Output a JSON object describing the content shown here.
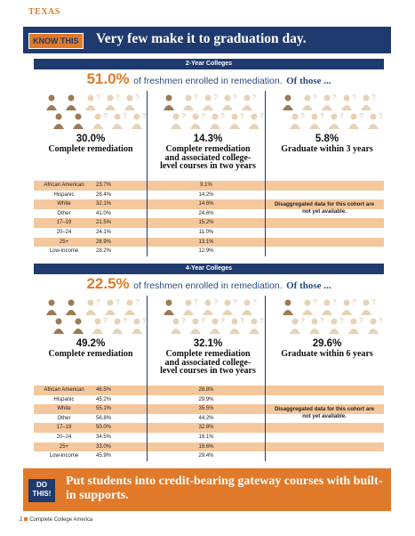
{
  "state": "TEXAS",
  "banner": {
    "label": "KNOW THIS",
    "title": "Very few make it to graduation day."
  },
  "sections": [
    {
      "header": "2-Year Colleges",
      "headline": {
        "percent": "51.0%",
        "text": "of freshmen enrolled in remediation.",
        "emphasis": "Of those ..."
      },
      "columns": [
        {
          "percent": "30.0%",
          "label": "Complete remediation"
        },
        {
          "percent": "14.3%",
          "label": "Complete remediation and associated college-level courses in two years"
        },
        {
          "percent": "5.8%",
          "label": "Graduate within 3 years"
        }
      ],
      "rows": [
        [
          "African American",
          "23.7%",
          "9.1%"
        ],
        [
          "Hispanic",
          "28.4%",
          "14.2%"
        ],
        [
          "White",
          "32.1%",
          "14.6%"
        ],
        [
          "Other",
          "41.0%",
          "24.6%"
        ],
        [
          "17–19",
          "21.5%",
          "15.2%"
        ],
        [
          "20–24",
          "24.1%",
          "11.0%"
        ],
        [
          "25+",
          "28.9%",
          "13.1%"
        ],
        [
          "Low-income",
          "28.2%",
          "12.9%"
        ]
      ],
      "note": "Disaggregated data for this cohort are not yet available."
    },
    {
      "header": "4-Year Colleges",
      "headline": {
        "percent": "22.5%",
        "text": "of freshmen enrolled in remediation.",
        "emphasis": "Of those ..."
      },
      "columns": [
        {
          "percent": "49.2%",
          "label": "Complete remediation"
        },
        {
          "percent": "32.1%",
          "label": "Complete remediation and associated college-level courses in two years"
        },
        {
          "percent": "29.6%",
          "label": "Graduate within 6 years"
        }
      ],
      "rows": [
        [
          "African American",
          "46.5%",
          "28.8%"
        ],
        [
          "Hispanic",
          "45.2%",
          "29.9%"
        ],
        [
          "White",
          "55.1%",
          "35.5%"
        ],
        [
          "Other",
          "56.8%",
          "44.2%"
        ],
        [
          "17–19",
          "50.0%",
          "32.8%"
        ],
        [
          "20–24",
          "34.5%",
          "19.1%"
        ],
        [
          "25+",
          "33.0%",
          "19.6%"
        ],
        [
          "Low-income",
          "45.9%",
          "29.4%"
        ]
      ],
      "note": "Disaggregated data for this cohort are not yet available."
    }
  ],
  "action": {
    "label": "DO THIS!",
    "text": "Put students into credit-bearing gateway courses with built-in supports."
  },
  "footer": {
    "page": "2",
    "publisher": "Complete College America"
  }
}
